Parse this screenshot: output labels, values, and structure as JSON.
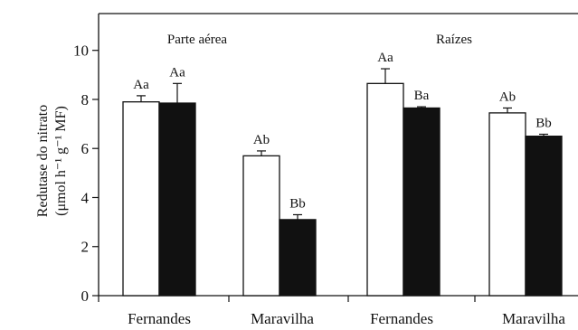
{
  "chart_data": {
    "type": "bar",
    "ylabel": [
      "Redutase do nitrato",
      "(μmol h⁻¹ g⁻¹ MF)"
    ],
    "ylim": [
      0,
      10
    ],
    "yticks": [
      0,
      2,
      4,
      6,
      8,
      10
    ],
    "grid": false,
    "panels": [
      "Parte aérea",
      "Raízes"
    ],
    "categories": [
      "Fernandes",
      "Maravilha",
      "Fernandes",
      "Maravilha"
    ],
    "series": [
      {
        "fill": "#ffffff",
        "values": [
          7.9,
          5.7,
          8.65,
          7.45
        ],
        "errors": [
          0.25,
          0.2,
          0.6,
          0.2
        ],
        "labels": [
          "Aa",
          "Ab",
          "Aa",
          "Ab"
        ]
      },
      {
        "fill": "#111111",
        "values": [
          7.85,
          3.1,
          7.65,
          6.5
        ],
        "errors": [
          0.8,
          0.2,
          0.05,
          0.08
        ],
        "labels": [
          "Aa",
          "Bb",
          "Ba",
          "Bb"
        ]
      }
    ]
  }
}
